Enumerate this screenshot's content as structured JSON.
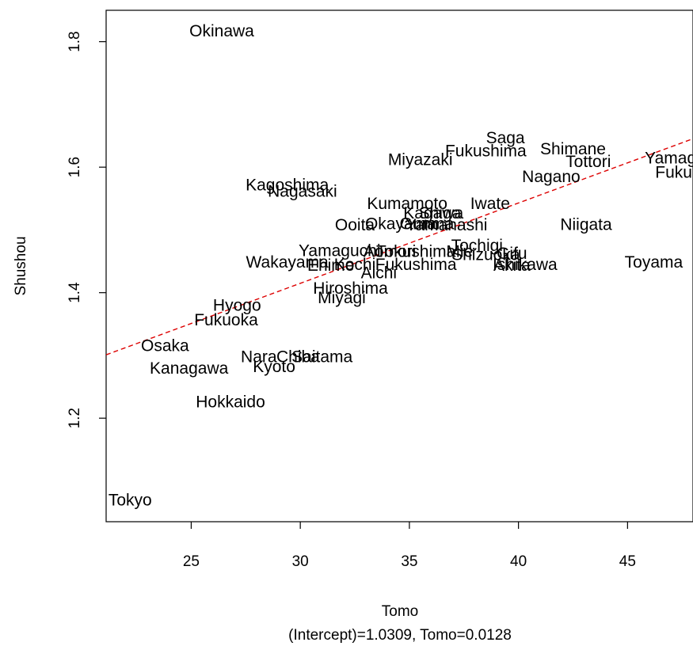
{
  "chart_data": {
    "type": "scatter",
    "xlabel": "Tomo",
    "ylabel": "Shushou",
    "subtitle": "(Intercept)=1.0309, Tomo=0.0128",
    "xlim": [
      21.1,
      48.0
    ],
    "ylim": [
      1.035,
      1.85
    ],
    "xticks": [
      25,
      30,
      35,
      40,
      45
    ],
    "yticks": [
      1.2,
      1.4,
      1.6,
      1.8
    ],
    "grid": false,
    "regression": {
      "intercept": 1.0309,
      "slope": 0.0128,
      "color": "#dd0000",
      "style": "dashed"
    },
    "points": [
      {
        "label": "Okinawa",
        "x": 26.4,
        "y": 1.817
      },
      {
        "label": "Saga",
        "x": 39.4,
        "y": 1.647
      },
      {
        "label": "Shimane",
        "x": 42.5,
        "y": 1.629
      },
      {
        "label": "Fukushima",
        "x": 38.5,
        "y": 1.626
      },
      {
        "label": "Yamagata",
        "x": 47.5,
        "y": 1.615
      },
      {
        "label": "Tottori",
        "x": 43.2,
        "y": 1.609
      },
      {
        "label": "Miyazaki",
        "x": 35.5,
        "y": 1.612
      },
      {
        "label": "Fukui",
        "x": 47.2,
        "y": 1.592
      },
      {
        "label": "Nagano",
        "x": 41.5,
        "y": 1.585
      },
      {
        "label": "Kagoshima",
        "x": 29.4,
        "y": 1.572
      },
      {
        "label": "Nagasaki",
        "x": 30.1,
        "y": 1.562
      },
      {
        "label": "Kumamoto",
        "x": 34.9,
        "y": 1.542
      },
      {
        "label": "Iwate",
        "x": 38.7,
        "y": 1.542
      },
      {
        "label": "Kagawa",
        "x": 36.1,
        "y": 1.527
      },
      {
        "label": "Shiga",
        "x": 36.4,
        "y": 1.527
      },
      {
        "label": "Niigata",
        "x": 43.1,
        "y": 1.509
      },
      {
        "label": "Ooita",
        "x": 32.5,
        "y": 1.508
      },
      {
        "label": "Okayama",
        "x": 34.6,
        "y": 1.51
      },
      {
        "label": "Gunma",
        "x": 35.8,
        "y": 1.51
      },
      {
        "label": "Yamanashi",
        "x": 36.7,
        "y": 1.508
      },
      {
        "label": "Tochigi",
        "x": 38.1,
        "y": 1.475
      },
      {
        "label": "Yamaguchi",
        "x": 31.8,
        "y": 1.467
      },
      {
        "label": "Aomori",
        "x": 34.1,
        "y": 1.466
      },
      {
        "label": "Tokushima",
        "x": 35.3,
        "y": 1.466
      },
      {
        "label": "Mie",
        "x": 37.3,
        "y": 1.466
      },
      {
        "label": "Gifu",
        "x": 39.7,
        "y": 1.463
      },
      {
        "label": "Shizuoka",
        "x": 38.5,
        "y": 1.461
      },
      {
        "label": "Wakayama",
        "x": 29.4,
        "y": 1.449
      },
      {
        "label": "Ehime",
        "x": 31.4,
        "y": 1.444
      },
      {
        "label": "Kochi",
        "x": 32.5,
        "y": 1.445
      },
      {
        "label": "Fukushima",
        "x": 35.3,
        "y": 1.445
      },
      {
        "label": "Ishikawa",
        "x": 40.3,
        "y": 1.445
      },
      {
        "label": "Akita",
        "x": 39.7,
        "y": 1.444
      },
      {
        "label": "Toyama",
        "x": 46.2,
        "y": 1.449
      },
      {
        "label": "Aichi",
        "x": 33.6,
        "y": 1.432
      },
      {
        "label": "Hiroshima",
        "x": 32.3,
        "y": 1.407
      },
      {
        "label": "Miyagi",
        "x": 31.9,
        "y": 1.392
      },
      {
        "label": "Hyogo",
        "x": 27.1,
        "y": 1.38
      },
      {
        "label": "Fukuoka",
        "x": 26.6,
        "y": 1.357
      },
      {
        "label": "Osaka",
        "x": 23.8,
        "y": 1.316
      },
      {
        "label": "Nara",
        "x": 28.1,
        "y": 1.298
      },
      {
        "label": "Chiba",
        "x": 29.9,
        "y": 1.298
      },
      {
        "label": "Saitama",
        "x": 31.0,
        "y": 1.298
      },
      {
        "label": "Kanagawa",
        "x": 24.9,
        "y": 1.28
      },
      {
        "label": "Kyoto",
        "x": 28.8,
        "y": 1.282
      },
      {
        "label": "Hokkaido",
        "x": 26.8,
        "y": 1.226
      },
      {
        "label": "Tokyo",
        "x": 22.2,
        "y": 1.07
      }
    ]
  }
}
